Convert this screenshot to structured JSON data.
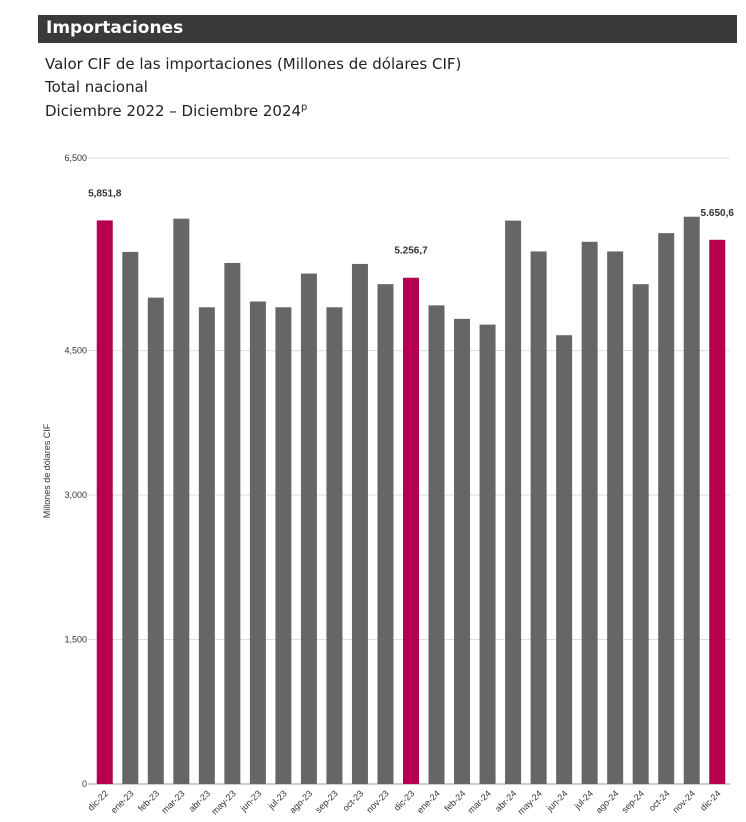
{
  "header": {
    "title": "Importaciones"
  },
  "subtitle": {
    "line1": "Valor CIF de las importaciones (Millones de dólares CIF)",
    "line2": "Total nacional",
    "line3": "Diciembre 2022 – Diciembre 2024",
    "line3_sup": "p"
  },
  "colors": {
    "highlight": "#b5004f",
    "normal": "#666666",
    "header_bg": "#3a3a3a"
  },
  "chart_data": {
    "type": "bar",
    "ylabel": "Millones de dólares CIF",
    "xlabel": "",
    "ylim": [
      0,
      6500
    ],
    "yticks": [
      0,
      1500,
      3000,
      4500,
      6500
    ],
    "ytick_labels": [
      "0",
      "1,500",
      "3,000",
      "4,500",
      "6,500"
    ],
    "grid": true,
    "categories": [
      "dic-22",
      "ene-23",
      "feb-23",
      "mar-23",
      "abr-23",
      "may-23",
      "jun-23",
      "jul-23",
      "ago-23",
      "sep-23",
      "oct-23",
      "nov-23",
      "dic-23",
      "ene-24",
      "feb-24",
      "mar-24",
      "abr-24",
      "may-24",
      "jun-24",
      "jul-24",
      "ago-24",
      "sep-24",
      "oct-24",
      "nov-24",
      "dic-24"
    ],
    "values": [
      5851.8,
      5525,
      5050,
      5870,
      4950,
      5410,
      5010,
      4950,
      5300,
      4950,
      5400,
      5190,
      5256.7,
      4970,
      4830,
      4770,
      5850,
      5530,
      4660,
      5630,
      5530,
      5190,
      5720,
      5890,
      5650.6
    ],
    "highlight_indices": [
      0,
      12,
      24
    ],
    "data_labels": [
      {
        "index": 0,
        "text": "5,851,8"
      },
      {
        "index": 12,
        "text": "5.256,7"
      },
      {
        "index": 24,
        "text": "5.650,6"
      }
    ]
  }
}
